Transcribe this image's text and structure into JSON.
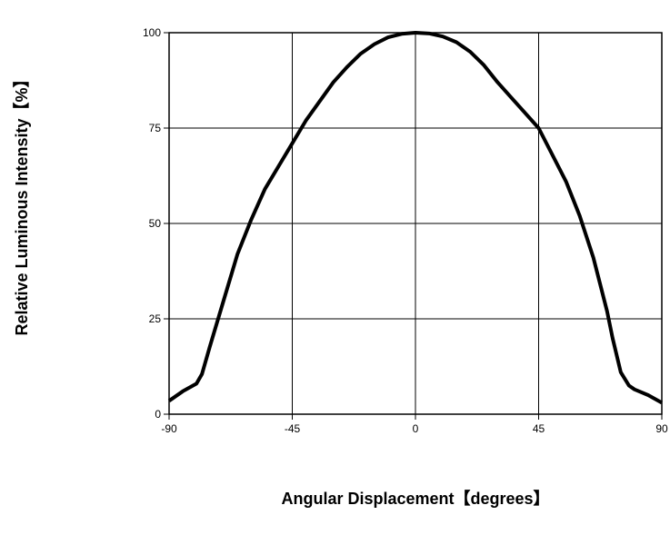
{
  "chart_data": {
    "type": "line",
    "xlabel": "Angular Displacement【degrees】",
    "ylabel": "Relative Luminous Intensity【%】",
    "x": [
      -90,
      -85,
      -80,
      -78,
      -75,
      -70,
      -65,
      -60,
      -55,
      -50,
      -45,
      -40,
      -35,
      -30,
      -25,
      -20,
      -15,
      -10,
      -5,
      0,
      5,
      10,
      15,
      20,
      25,
      30,
      35,
      40,
      45,
      50,
      55,
      60,
      65,
      70,
      72,
      75,
      78,
      80,
      85,
      90
    ],
    "series": [
      {
        "name": "Relative Luminous Intensity",
        "color": "#000000",
        "values": [
          3.5,
          6,
          8,
          10.5,
          18,
          30,
          42,
          51,
          59,
          65,
          71,
          77,
          82,
          87,
          91,
          94.5,
          97,
          98.8,
          99.7,
          100,
          99.8,
          99,
          97.5,
          95,
          91.5,
          87,
          83,
          79,
          75,
          68,
          61,
          52,
          41,
          27,
          20,
          11,
          7.5,
          6.5,
          5,
          3
        ]
      }
    ],
    "xlim": [
      -90,
      90
    ],
    "xticks": [
      -90,
      -45,
      0,
      45,
      90
    ],
    "ylim": [
      0,
      100
    ],
    "yticks": [
      0,
      25,
      50,
      75,
      100
    ],
    "grid": true
  }
}
